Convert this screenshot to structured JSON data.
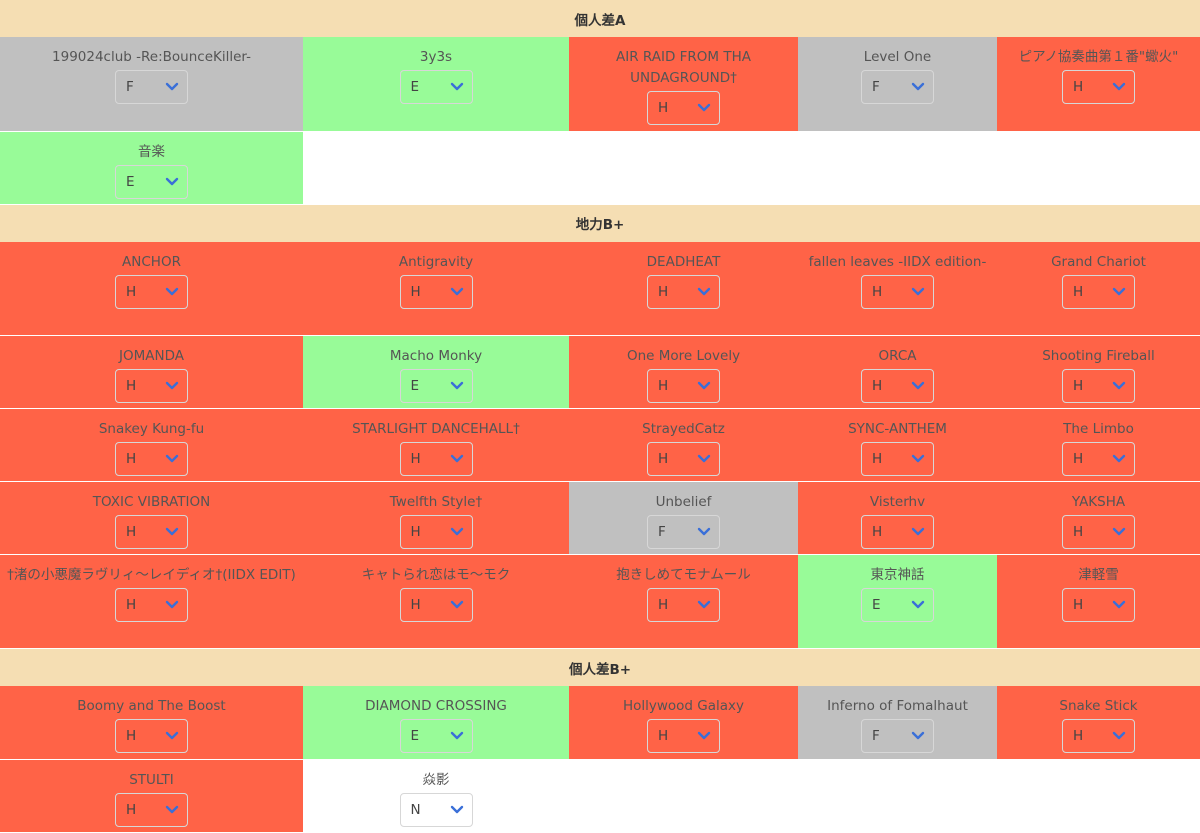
{
  "sections": [
    {
      "title": "個人差A",
      "rows": [
        [
          {
            "name": "199024club -Re:BounceKiller-",
            "value": "F"
          },
          {
            "name": "3y3s",
            "value": "E"
          },
          {
            "name": "AIR RAID FROM THA UNDAGROUND†",
            "value": "H"
          },
          {
            "name": "Level One",
            "value": "F"
          },
          {
            "name": "ピアノ協奏曲第１番\"蠍火\"",
            "value": "H"
          }
        ],
        [
          {
            "name": "音楽",
            "value": "E"
          }
        ]
      ]
    },
    {
      "title": "地力B+",
      "rows": [
        [
          {
            "name": "ANCHOR",
            "value": "H"
          },
          {
            "name": "Antigravity",
            "value": "H"
          },
          {
            "name": "DEADHEAT",
            "value": "H"
          },
          {
            "name": "fallen leaves -IIDX edition-",
            "value": "H"
          },
          {
            "name": "Grand Chariot",
            "value": "H"
          }
        ],
        [
          {
            "name": "JOMANDA",
            "value": "H"
          },
          {
            "name": "Macho Monky",
            "value": "E"
          },
          {
            "name": "One More Lovely",
            "value": "H"
          },
          {
            "name": "ORCA",
            "value": "H"
          },
          {
            "name": "Shooting Fireball",
            "value": "H"
          }
        ],
        [
          {
            "name": "Snakey Kung-fu",
            "value": "H"
          },
          {
            "name": "STARLIGHT DANCEHALL†",
            "value": "H"
          },
          {
            "name": "StrayedCatz",
            "value": "H"
          },
          {
            "name": "SYNC-ANTHEM",
            "value": "H"
          },
          {
            "name": "The Limbo",
            "value": "H"
          }
        ],
        [
          {
            "name": "TOXIC VIBRATION",
            "value": "H"
          },
          {
            "name": "Twelfth Style†",
            "value": "H"
          },
          {
            "name": "Unbelief",
            "value": "F"
          },
          {
            "name": "Visterhv",
            "value": "H"
          },
          {
            "name": "YAKSHA",
            "value": "H"
          }
        ],
        [
          {
            "name": "†渚の小悪魔ラヴリィ～レイディオ†(IIDX EDIT)",
            "value": "H"
          },
          {
            "name": "キャトられ恋はモ～モク",
            "value": "H"
          },
          {
            "name": "抱きしめてモナムール",
            "value": "H"
          },
          {
            "name": "東京神話",
            "value": "E"
          },
          {
            "name": "津軽雪",
            "value": "H"
          }
        ]
      ]
    },
    {
      "title": "個人差B+",
      "rows": [
        [
          {
            "name": "Boomy and The Boost",
            "value": "H"
          },
          {
            "name": "DIAMOND CROSSING",
            "value": "E"
          },
          {
            "name": "Hollywood Galaxy",
            "value": "H"
          },
          {
            "name": "Inferno of Fomalhaut",
            "value": "F"
          },
          {
            "name": "Snake Stick",
            "value": "H"
          }
        ],
        [
          {
            "name": "STULTI",
            "value": "H"
          },
          {
            "name": "焱影",
            "value": "N"
          }
        ]
      ]
    }
  ],
  "colors": {
    "H": "#ff6347",
    "E": "#98fb98",
    "F": "#c0c0c0",
    "N": "#ffffff",
    "header": "#f5deb3",
    "chevron": "#3a6fd8"
  }
}
